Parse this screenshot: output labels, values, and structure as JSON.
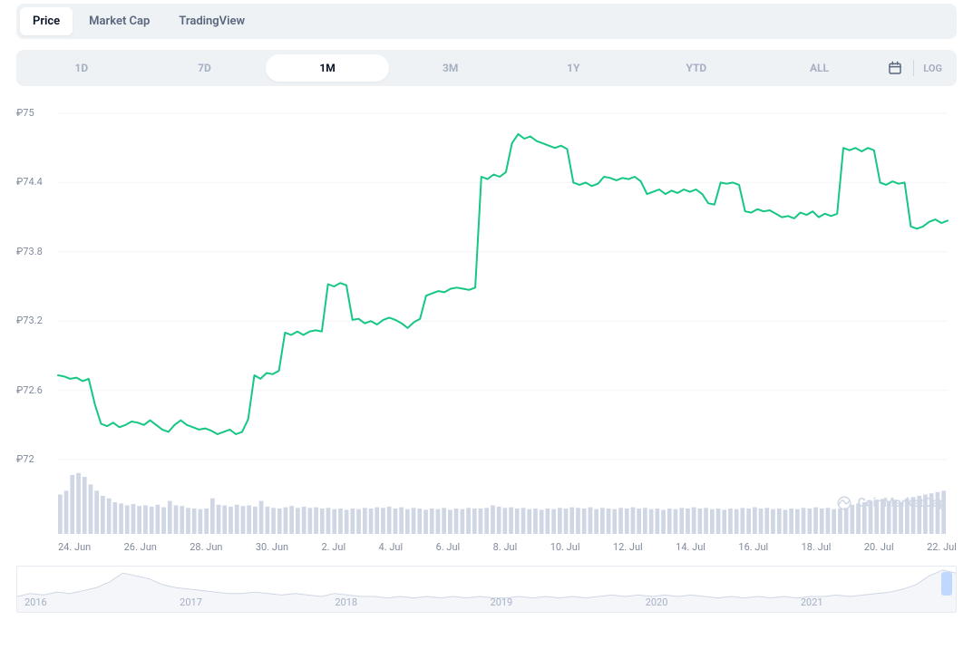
{
  "tabs": {
    "items": [
      "Price",
      "Market Cap",
      "TradingView"
    ],
    "active_index": 0
  },
  "ranges": {
    "items": [
      "1D",
      "7D",
      "1M",
      "3M",
      "1Y",
      "YTD",
      "ALL"
    ],
    "active_index": 2,
    "log_label": "LOG"
  },
  "watermark": {
    "label": "CoinMarketCap"
  },
  "price_chart": {
    "type": "line",
    "line_color": "#16c784",
    "line_width": 2,
    "background_color": "#ffffff",
    "grid_color": "#f2f4f8",
    "ylim": [
      72,
      75
    ],
    "yticks": [
      75,
      74.4,
      73.8,
      73.2,
      72.6,
      72
    ],
    "ytick_labels": [
      "₽75",
      "₽74.4",
      "₽73.8",
      "₽73.2",
      "₽72.6",
      "₽72"
    ],
    "x_labels": [
      "24. Jun",
      "26. Jun",
      "28. Jun",
      "30. Jun",
      "2. Jul",
      "4. Jul",
      "6. Jul",
      "8. Jul",
      "10. Jul",
      "12. Jul",
      "14. Jul",
      "16. Jul",
      "18. Jul",
      "20. Jul",
      "22. Jul"
    ],
    "series": [
      72.73,
      72.72,
      72.7,
      72.71,
      72.68,
      72.7,
      72.48,
      72.31,
      72.29,
      72.32,
      72.28,
      72.3,
      72.33,
      72.32,
      72.3,
      72.34,
      72.3,
      72.26,
      72.24,
      72.3,
      72.34,
      72.3,
      72.28,
      72.26,
      72.27,
      72.25,
      72.22,
      72.24,
      72.26,
      72.22,
      72.24,
      72.35,
      72.73,
      72.7,
      72.75,
      72.74,
      72.77,
      73.1,
      73.08,
      73.11,
      73.08,
      73.11,
      73.12,
      73.11,
      73.52,
      73.5,
      73.53,
      73.51,
      73.21,
      73.22,
      73.18,
      73.2,
      73.17,
      73.21,
      73.23,
      73.21,
      73.18,
      73.14,
      73.19,
      73.22,
      73.42,
      73.44,
      73.46,
      73.45,
      73.48,
      73.49,
      73.48,
      73.47,
      73.49,
      74.45,
      74.43,
      74.47,
      74.45,
      74.49,
      74.74,
      74.82,
      74.78,
      74.8,
      74.76,
      74.74,
      74.72,
      74.7,
      74.72,
      74.69,
      74.4,
      74.38,
      74.4,
      74.37,
      74.39,
      74.45,
      74.44,
      74.42,
      74.44,
      74.43,
      74.45,
      74.41,
      74.3,
      74.32,
      74.34,
      74.3,
      74.33,
      74.31,
      74.34,
      74.32,
      74.34,
      74.3,
      74.22,
      74.21,
      74.4,
      74.39,
      74.4,
      74.38,
      74.15,
      74.14,
      74.17,
      74.15,
      74.16,
      74.13,
      74.1,
      74.11,
      74.09,
      74.14,
      74.12,
      74.15,
      74.1,
      74.13,
      74.11,
      74.13,
      74.7,
      74.68,
      74.7,
      74.67,
      74.7,
      74.68,
      74.4,
      74.38,
      74.41,
      74.39,
      74.4,
      74.02,
      74.0,
      74.02,
      74.06,
      74.08,
      74.05,
      74.07
    ]
  },
  "volume_chart": {
    "type": "bar",
    "bar_color": "#cfd6e4",
    "background_color": "#ffffff",
    "ymax": 1,
    "values": [
      0.62,
      0.68,
      0.93,
      0.96,
      0.9,
      0.78,
      0.68,
      0.6,
      0.56,
      0.5,
      0.48,
      0.45,
      0.47,
      0.44,
      0.45,
      0.43,
      0.46,
      0.42,
      0.52,
      0.45,
      0.44,
      0.41,
      0.4,
      0.39,
      0.4,
      0.56,
      0.46,
      0.45,
      0.43,
      0.46,
      0.44,
      0.45,
      0.43,
      0.52,
      0.43,
      0.41,
      0.4,
      0.42,
      0.44,
      0.41,
      0.43,
      0.41,
      0.42,
      0.4,
      0.41,
      0.39,
      0.4,
      0.38,
      0.4,
      0.39,
      0.41,
      0.4,
      0.42,
      0.41,
      0.43,
      0.4,
      0.42,
      0.39,
      0.41,
      0.4,
      0.38,
      0.4,
      0.39,
      0.41,
      0.38,
      0.4,
      0.39,
      0.41,
      0.4,
      0.4,
      0.41,
      0.45,
      0.43,
      0.41,
      0.42,
      0.4,
      0.41,
      0.39,
      0.4,
      0.38,
      0.4,
      0.39,
      0.41,
      0.4,
      0.42,
      0.41,
      0.4,
      0.42,
      0.39,
      0.41,
      0.4,
      0.39,
      0.41,
      0.4,
      0.42,
      0.4,
      0.41,
      0.39,
      0.4,
      0.38,
      0.4,
      0.39,
      0.41,
      0.4,
      0.42,
      0.4,
      0.41,
      0.39,
      0.4,
      0.38,
      0.4,
      0.39,
      0.41,
      0.4,
      0.42,
      0.4,
      0.41,
      0.39,
      0.4,
      0.38,
      0.4,
      0.39,
      0.41,
      0.4,
      0.42,
      0.4,
      0.41,
      0.39,
      0.4,
      0.41,
      0.46,
      0.48,
      0.5,
      0.52,
      0.54,
      0.55,
      0.52,
      0.54,
      0.5,
      0.56,
      0.58,
      0.6,
      0.62,
      0.64,
      0.66,
      0.68
    ]
  },
  "overview_chart": {
    "type": "area",
    "line_color": "#cfd6e4",
    "fill_color": "#f4f6fa",
    "x_labels": [
      "2016",
      "2017",
      "2018",
      "2019",
      "2020",
      "2021"
    ],
    "series": [
      12,
      14,
      13,
      15,
      14,
      16,
      18,
      22,
      28,
      26,
      24,
      20,
      18,
      17,
      16,
      15,
      14,
      14,
      15,
      14,
      13,
      14,
      13,
      12,
      14,
      13,
      12,
      12,
      11,
      12,
      11,
      12,
      11,
      12,
      11,
      12,
      11,
      11,
      12,
      11,
      12,
      11,
      12,
      11,
      12,
      13,
      12,
      13,
      12,
      13,
      12,
      13,
      12,
      11,
      12,
      11,
      12,
      11,
      12,
      11,
      12,
      12,
      13,
      12,
      13,
      14,
      15,
      17,
      20,
      26,
      30,
      28
    ]
  },
  "colors": {
    "bg_panel": "#eff2f5",
    "text_muted": "#a6b0c3",
    "text_label": "#808a9d",
    "text_primary": "#0b1426",
    "handle": "#c0d8ff"
  }
}
